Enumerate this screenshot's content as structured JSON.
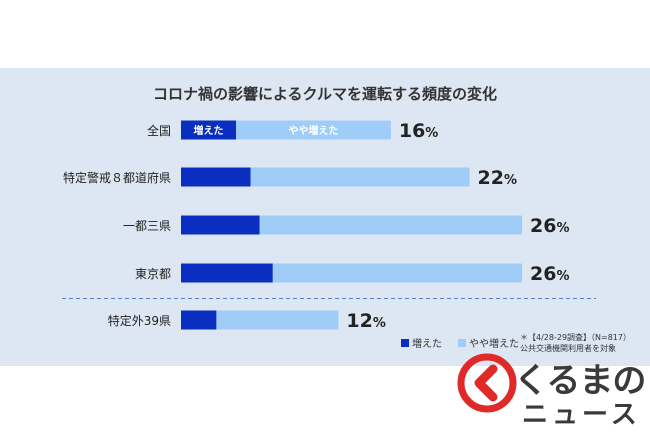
{
  "chart_data": {
    "type": "bar",
    "orientation": "horizontal",
    "stacked": true,
    "title": "コロナ禍の影響によるクルマを運転する頻度の変化",
    "categories": [
      "全国",
      "特定警戒８都道府県",
      "一都三県",
      "東京都",
      "特定外39県"
    ],
    "series": [
      {
        "name": "増えた",
        "color": "#0a2fc0",
        "values": [
          4.2,
          5.3,
          6.0,
          7.0,
          2.7
        ]
      },
      {
        "name": "やや増えた",
        "color": "#9fcdf8",
        "values": [
          11.8,
          16.7,
          20.0,
          19.0,
          9.3
        ]
      }
    ],
    "totals": [
      16,
      22,
      26,
      26,
      12
    ],
    "total_labels": [
      "16%",
      "22%",
      "26%",
      "26%",
      "12%"
    ],
    "in_bar_labels": {
      "row_index": 0,
      "labels": [
        "増えた",
        "やや増えた"
      ]
    },
    "xlim": [
      0,
      26
    ],
    "legend": {
      "position": "bottom-right",
      "labels": [
        "増えた",
        "やや増えた"
      ]
    },
    "note_lines": [
      "＊【4/28-29調査】（N=817）",
      "公共交通機関利用者を対象"
    ],
    "divider_after_index": 3
  },
  "logo": {
    "line1": "くるまの",
    "line2": "ニュース",
    "mark_color": "#e02a2a"
  }
}
